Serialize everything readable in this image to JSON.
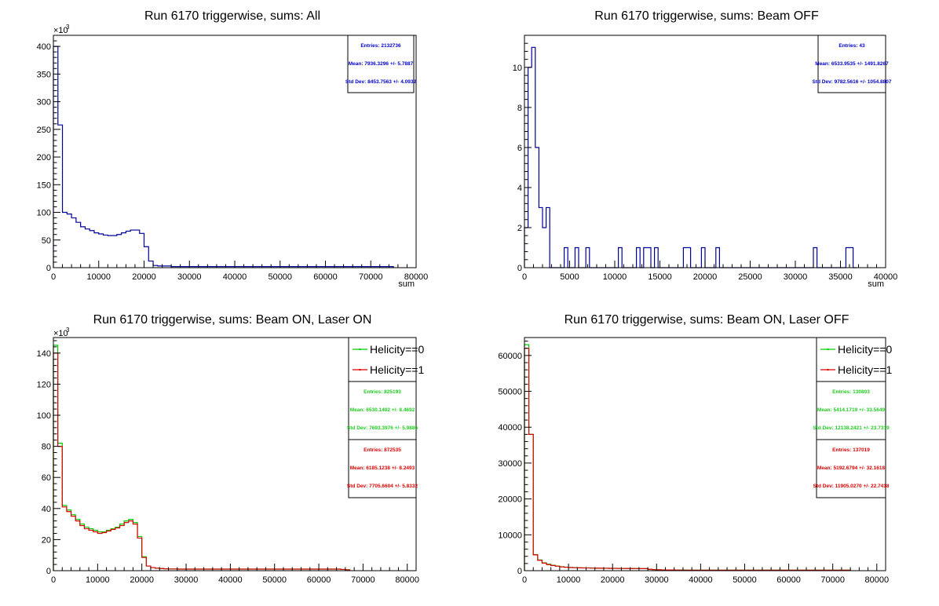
{
  "chart_data": [
    {
      "type": "histogram",
      "title": "Run 6170 triggerwise, sums: All",
      "xlabel": "sum",
      "xlim": [
        0,
        80000
      ],
      "ylim": [
        0,
        420
      ],
      "y_multiplier_label": "×10",
      "y_multiplier_exp": "3",
      "xticks": [
        0,
        10000,
        20000,
        30000,
        40000,
        50000,
        60000,
        70000,
        80000
      ],
      "yticks": [
        0,
        50,
        100,
        150,
        200,
        250,
        300,
        350,
        400
      ],
      "bin_width": 1000,
      "series": [
        {
          "color": "#000099",
          "values": [
            400,
            258,
            100,
            97,
            90,
            82,
            74,
            70,
            67,
            63,
            61,
            59,
            58,
            58,
            60,
            63,
            66,
            68,
            68,
            62,
            38,
            12,
            4,
            3,
            3,
            3,
            2,
            2,
            2,
            2,
            2,
            2,
            2,
            2,
            2,
            2,
            2,
            2,
            2,
            2,
            2,
            2,
            2,
            2,
            2,
            2,
            2,
            2,
            2,
            2,
            2,
            2,
            2,
            2,
            2,
            2,
            2,
            2,
            2,
            2,
            2,
            2,
            2,
            2,
            2,
            2,
            2,
            2,
            2,
            2,
            2,
            2,
            2,
            2,
            2
          ]
        }
      ],
      "stats": [
        {
          "color": "#0000cc",
          "entries": "Entries: 2132736",
          "mean": "Mean: 7936.3296 +/- 5.7887",
          "stddev": "Std Dev: 8453.7563 +/- 4.0932"
        }
      ],
      "legend": []
    },
    {
      "type": "histogram",
      "title": "Run 6170 triggerwise, sums: Beam OFF",
      "xlabel": "sum",
      "xlim": [
        0,
        40000
      ],
      "ylim": [
        0,
        11.6
      ],
      "y_multiplier_label": "",
      "y_multiplier_exp": "",
      "xticks": [
        0,
        5000,
        10000,
        15000,
        20000,
        25000,
        30000,
        35000,
        40000
      ],
      "yticks": [
        0,
        2,
        4,
        6,
        8,
        10
      ],
      "bin_width": 400,
      "series": [
        {
          "color": "#000099",
          "values": [
            2,
            10,
            11,
            6,
            3,
            2,
            3,
            0,
            0,
            0,
            0,
            1,
            0,
            0,
            1,
            0,
            0,
            1,
            0,
            0,
            0,
            0,
            0,
            0,
            0,
            0,
            1,
            0,
            0,
            0,
            0,
            1,
            0,
            1,
            1,
            0,
            1,
            0,
            0,
            0,
            0,
            0,
            0,
            0,
            1,
            1,
            0,
            0,
            0,
            1,
            0,
            0,
            0,
            1,
            0,
            0,
            0,
            0,
            0,
            0,
            0,
            0,
            0,
            0,
            0,
            0,
            0,
            0,
            0,
            0,
            0,
            0,
            0,
            0,
            0,
            0,
            0,
            0,
            0,
            0,
            1,
            0,
            0,
            0,
            0,
            0,
            0,
            0,
            0,
            1,
            1,
            0
          ]
        }
      ],
      "stats": [
        {
          "color": "#0000cc",
          "entries": "Entries: 43",
          "mean": "Mean: 6533.9535 +/- 1491.8267",
          "stddev": "Std Dev: 9782.5616 +/- 1054.8807"
        }
      ],
      "legend": []
    },
    {
      "type": "histogram",
      "title": "Run 6170 triggerwise, sums: Beam ON, Laser ON",
      "xlabel": "",
      "xlim": [
        0,
        82000
      ],
      "ylim": [
        0,
        150
      ],
      "y_multiplier_label": "×10",
      "y_multiplier_exp": "3",
      "xticks": [
        0,
        10000,
        20000,
        30000,
        40000,
        50000,
        60000,
        70000,
        80000
      ],
      "yticks": [
        0,
        20,
        40,
        60,
        80,
        100,
        120,
        140
      ],
      "bin_width": 1000,
      "series": [
        {
          "color": "#00cc00",
          "values": [
            145,
            82,
            42,
            39,
            36,
            33,
            30,
            28,
            27,
            26,
            25,
            25,
            26,
            27,
            28,
            30,
            32,
            33,
            31,
            22,
            9,
            3,
            2,
            1.6,
            1.4,
            1.2,
            1.1,
            1.1,
            1,
            1,
            1,
            1,
            1,
            1,
            1,
            1,
            1,
            1,
            1,
            1,
            1,
            1,
            1,
            1,
            1,
            1,
            1,
            1,
            1,
            1,
            1,
            1,
            1,
            1,
            1,
            1,
            1,
            1,
            1,
            1,
            1,
            1,
            1,
            1,
            1,
            0.8,
            0.6
          ]
        },
        {
          "color": "#dd0000",
          "values": [
            140,
            80,
            41,
            38,
            35,
            32,
            29,
            27,
            26,
            25,
            24,
            24.5,
            25.5,
            26.5,
            27.5,
            29,
            31,
            32,
            30,
            21,
            8.5,
            3,
            2,
            1.6,
            1.4,
            1.2,
            1.1,
            1.1,
            1,
            1,
            1,
            1,
            1,
            1,
            1,
            1,
            1,
            1,
            1,
            1,
            1,
            1,
            1,
            1,
            1,
            1,
            1,
            1,
            1,
            1,
            1,
            1,
            1,
            1,
            1,
            1,
            1,
            1,
            1,
            1,
            1,
            1,
            1,
            1,
            1,
            0.8,
            0.6
          ]
        }
      ],
      "stats": [
        {
          "color": "#22cc22",
          "entries": "Entries: 825193",
          "mean": "Mean: 6530.1402 +/- 8.4692",
          "stddev": "Std Dev: 7693.3976 +/- 5.9886"
        },
        {
          "color": "#dd0000",
          "entries": "Entries: 872535",
          "mean": "Mean: 6185.1238 +/- 8.2493",
          "stddev": "Std Dev: 7705.6604 +/- 5.8332"
        }
      ],
      "legend": [
        {
          "label": "Helicity==0",
          "color": "#00cc00"
        },
        {
          "label": "Helicity==1",
          "color": "#dd0000"
        }
      ]
    },
    {
      "type": "histogram",
      "title": "Run 6170 triggerwise, sums: Beam ON, Laser OFF",
      "xlabel": "",
      "xlim": [
        0,
        82000
      ],
      "ylim": [
        0,
        65000
      ],
      "y_multiplier_label": "",
      "y_multiplier_exp": "",
      "xticks": [
        0,
        10000,
        20000,
        30000,
        40000,
        50000,
        60000,
        70000,
        80000
      ],
      "yticks": [
        0,
        10000,
        20000,
        30000,
        40000,
        50000,
        60000
      ],
      "bin_width": 1000,
      "series": [
        {
          "color": "#00cc00",
          "values": [
            63000,
            38000,
            4500,
            3000,
            2200,
            1800,
            1500,
            1300,
            1100,
            1000,
            900,
            850,
            800,
            780,
            760,
            740,
            720,
            700,
            680,
            660,
            650,
            640,
            630,
            620,
            610,
            600,
            590,
            580,
            400,
            300,
            250,
            220,
            200,
            190,
            180,
            170,
            160,
            150,
            150,
            150,
            150,
            150,
            150,
            150,
            150,
            150,
            150,
            150,
            150,
            150,
            150,
            150,
            150,
            150,
            150,
            150,
            150,
            150,
            150,
            150,
            150,
            150,
            150,
            150,
            150,
            150,
            150,
            150,
            150,
            150,
            150,
            150,
            150,
            150
          ]
        },
        {
          "color": "#dd0000",
          "values": [
            62000,
            38000,
            4400,
            2900,
            2100,
            1700,
            1450,
            1250,
            1050,
            950,
            880,
            830,
            790,
            770,
            750,
            730,
            710,
            690,
            670,
            650,
            640,
            630,
            620,
            610,
            600,
            590,
            580,
            570,
            390,
            290,
            240,
            210,
            195,
            185,
            175,
            165,
            155,
            150,
            150,
            150,
            150,
            150,
            150,
            150,
            150,
            150,
            150,
            150,
            150,
            150,
            150,
            150,
            150,
            150,
            150,
            150,
            150,
            150,
            150,
            150,
            150,
            150,
            150,
            150,
            150,
            150,
            150,
            150,
            150,
            150,
            150,
            150,
            150,
            150
          ]
        }
      ],
      "stats": [
        {
          "color": "#22cc22",
          "entries": "Entries: 130803",
          "mean": "Mean: 5414.1719 +/- 33.5649",
          "stddev": "Std Dev: 12138.2421 +/- 23.7319"
        },
        {
          "color": "#dd0000",
          "entries": "Entries: 137019",
          "mean": "Mean: 5192.6794 +/- 32.1618",
          "stddev": "Std Dev: 11905.0270 +/- 22.7418"
        }
      ],
      "legend": [
        {
          "label": "Helicity==0",
          "color": "#00cc00"
        },
        {
          "label": "Helicity==1",
          "color": "#dd0000"
        }
      ]
    }
  ]
}
